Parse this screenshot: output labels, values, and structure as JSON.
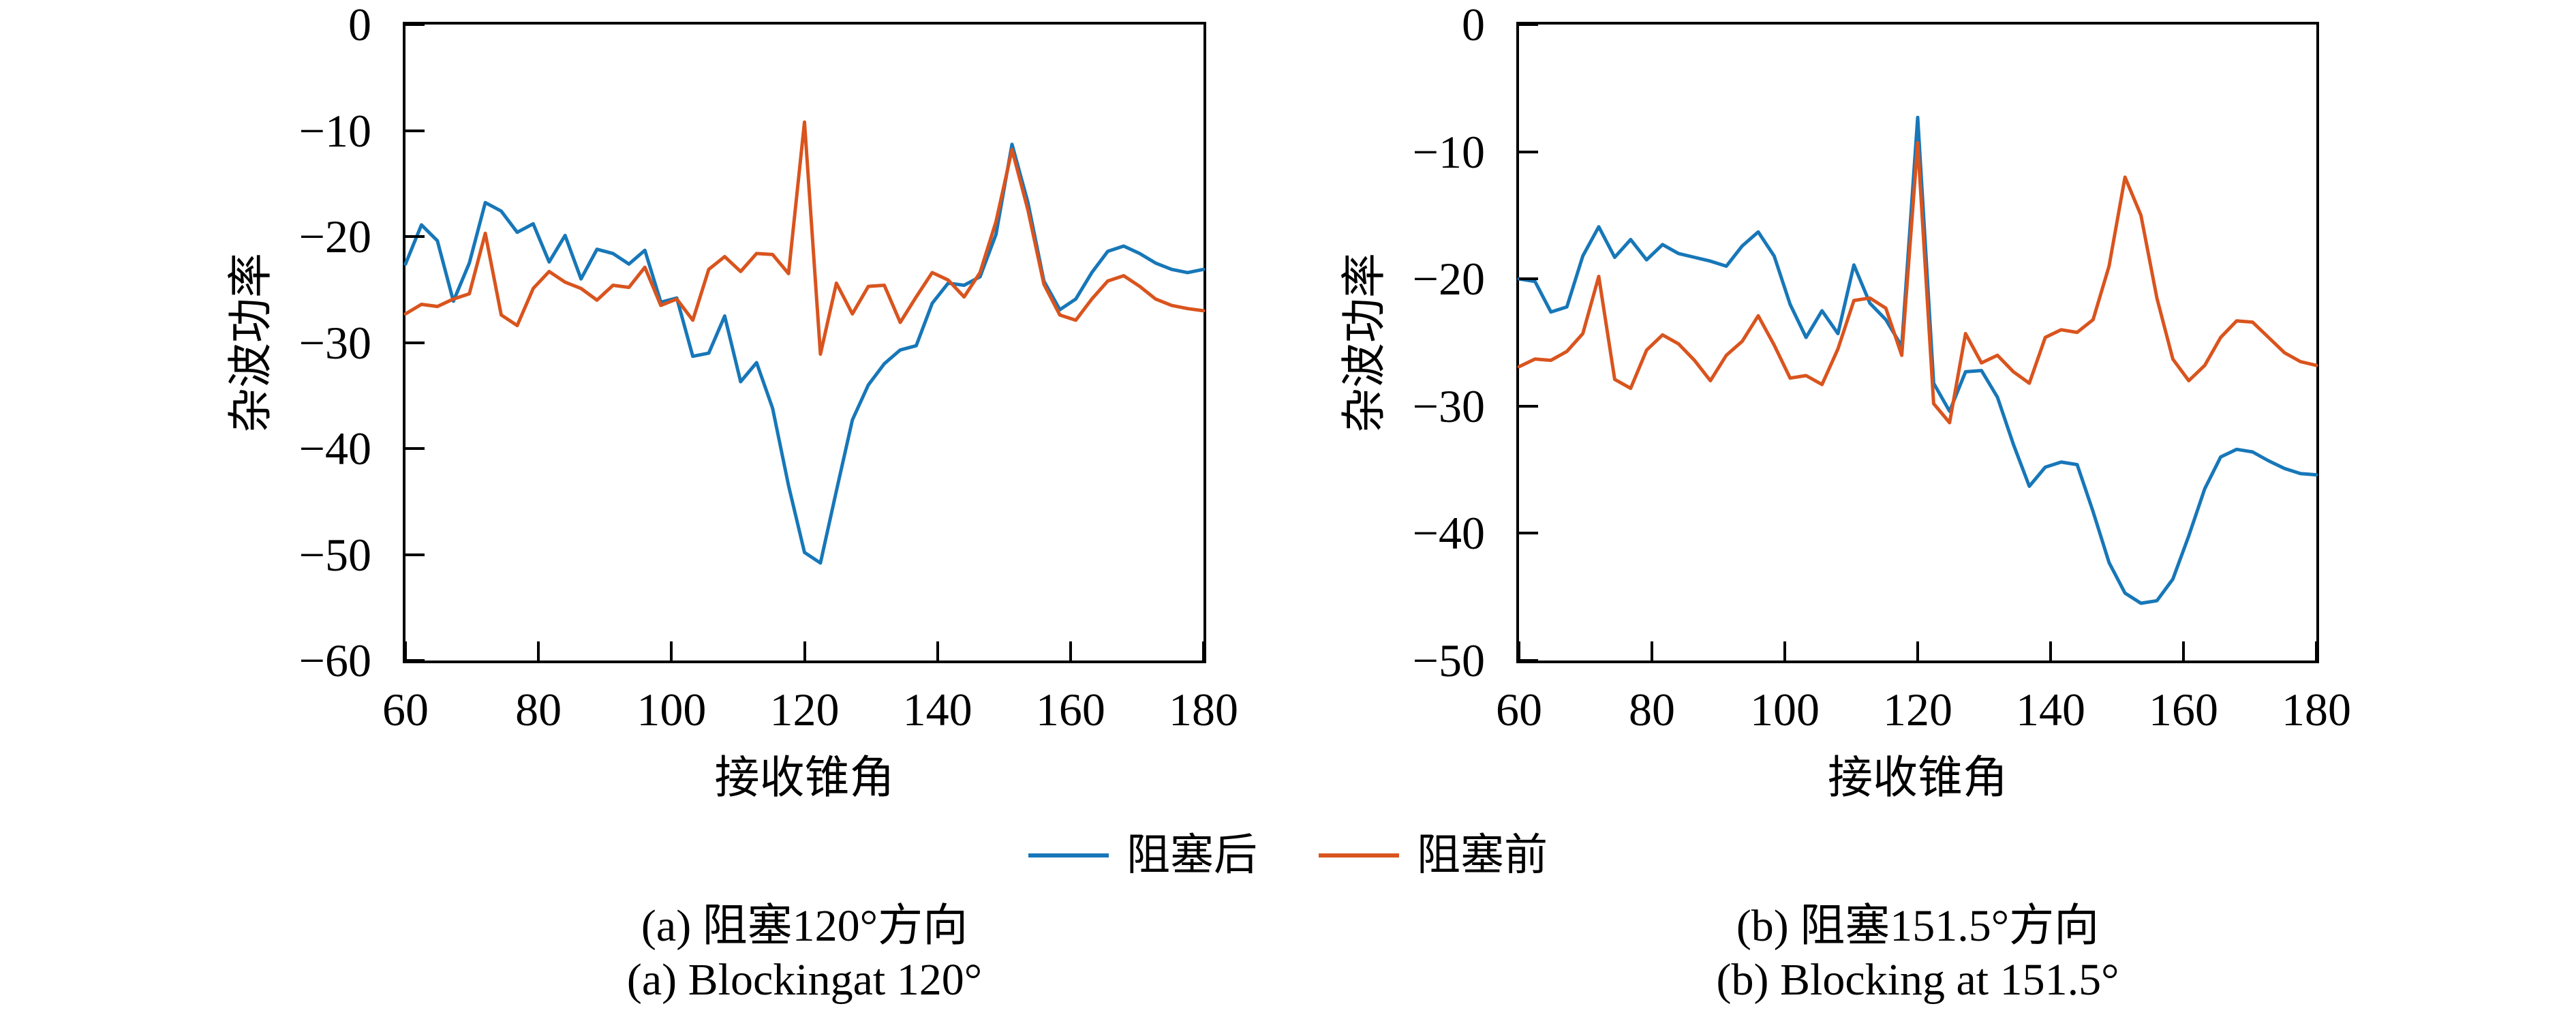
{
  "page": {
    "background": "#ffffff"
  },
  "legend": {
    "position": "bottom-center",
    "items": [
      {
        "label": "阻塞后",
        "color": "#1777b8"
      },
      {
        "label": "阻塞前",
        "color": "#d9541e"
      }
    ]
  },
  "chart_data": [
    {
      "type": "line",
      "title": "",
      "xlabel": "接收锥角",
      "ylabel": "杂波功率",
      "caption_line1": "(a) 阻塞120°方向",
      "caption_line2": "(a) Blockingat 120°",
      "xlim": [
        60,
        180
      ],
      "ylim": [
        -60,
        0
      ],
      "xticks": [
        60,
        80,
        100,
        120,
        140,
        160,
        180
      ],
      "yticks": [
        0,
        -10,
        -20,
        -30,
        -40,
        -50,
        -60
      ],
      "grid": false,
      "legend_position": "below-figure",
      "x": [
        60,
        62.4,
        64.8,
        67.2,
        69.6,
        72,
        74.4,
        76.8,
        79.2,
        81.6,
        84,
        86.4,
        88.8,
        91.2,
        93.6,
        96,
        98.4,
        100.8,
        103.2,
        105.6,
        108,
        110.4,
        112.8,
        115.2,
        117.6,
        120,
        122.4,
        124.8,
        127.2,
        129.6,
        132,
        134.4,
        136.8,
        139.2,
        141.6,
        144,
        146.4,
        148.8,
        151.2,
        153.6,
        156,
        158.4,
        160.8,
        163.2,
        165.6,
        168,
        170.4,
        172.8,
        175.2,
        177.6,
        180
      ],
      "series": [
        {
          "name": "阻塞后",
          "color": "#1777b8",
          "values": [
            -22.6,
            -18.9,
            -20.4,
            -26.1,
            -22.5,
            -16.8,
            -17.6,
            -19.6,
            -18.8,
            -22.4,
            -19.9,
            -24.0,
            -21.2,
            -21.6,
            -22.6,
            -21.3,
            -26.2,
            -25.8,
            -31.3,
            -31.0,
            -27.5,
            -33.7,
            -31.9,
            -36.2,
            -43.5,
            -49.8,
            -50.8,
            -44.0,
            -37.3,
            -34.0,
            -32.0,
            -30.7,
            -30.3,
            -26.3,
            -24.4,
            -24.6,
            -23.8,
            -19.8,
            -11.3,
            -16.8,
            -24.2,
            -26.9,
            -25.9,
            -23.4,
            -21.4,
            -20.9,
            -21.6,
            -22.5,
            -23.1,
            -23.4,
            -23.1
          ]
        },
        {
          "name": "阻塞前",
          "color": "#d9541e",
          "values": [
            -27.3,
            -26.4,
            -26.6,
            -25.9,
            -25.4,
            -19.7,
            -27.4,
            -28.4,
            -24.9,
            -23.3,
            -24.3,
            -24.9,
            -26.0,
            -24.6,
            -24.8,
            -22.9,
            -26.5,
            -25.9,
            -27.9,
            -23.1,
            -21.9,
            -23.3,
            -21.6,
            -21.7,
            -23.5,
            -9.2,
            -31.1,
            -24.4,
            -27.3,
            -24.7,
            -24.6,
            -28.1,
            -25.7,
            -23.4,
            -24.1,
            -25.7,
            -23.4,
            -18.6,
            -11.8,
            -17.5,
            -24.5,
            -27.4,
            -27.9,
            -25.9,
            -24.2,
            -23.7,
            -24.7,
            -25.9,
            -26.5,
            -26.8,
            -27.0
          ]
        }
      ]
    },
    {
      "type": "line",
      "title": "",
      "xlabel": "接收锥角",
      "ylabel": "杂波功率",
      "caption_line1": "(b) 阻塞151.5°方向",
      "caption_line2": "(b) Blocking at 151.5°",
      "xlim": [
        60,
        180
      ],
      "ylim": [
        -50,
        0
      ],
      "xticks": [
        60,
        80,
        100,
        120,
        140,
        160,
        180
      ],
      "yticks": [
        0,
        -10,
        -20,
        -30,
        -40,
        -50
      ],
      "grid": false,
      "legend_position": "below-figure",
      "x": [
        60,
        62.4,
        64.8,
        67.2,
        69.6,
        72,
        74.4,
        76.8,
        79.2,
        81.6,
        84,
        86.4,
        88.8,
        91.2,
        93.6,
        96,
        98.4,
        100.8,
        103.2,
        105.6,
        108,
        110.4,
        112.8,
        115.2,
        117.6,
        120,
        122.4,
        124.8,
        127.2,
        129.6,
        132,
        134.4,
        136.8,
        139.2,
        141.6,
        144,
        146.4,
        148.8,
        151.2,
        153.6,
        156,
        158.4,
        160.8,
        163.2,
        165.6,
        168,
        170.4,
        172.8,
        175.2,
        177.6,
        180
      ],
      "series": [
        {
          "name": "阻塞后",
          "color": "#1777b8",
          "values": [
            -20.0,
            -20.2,
            -22.6,
            -22.2,
            -18.2,
            -15.9,
            -18.3,
            -16.9,
            -18.5,
            -17.3,
            -18.0,
            -18.3,
            -18.6,
            -19.0,
            -17.4,
            -16.3,
            -18.2,
            -22.0,
            -24.6,
            -22.5,
            -24.3,
            -18.9,
            -21.9,
            -23.2,
            -25.3,
            -7.3,
            -28.2,
            -30.4,
            -27.3,
            -27.2,
            -29.3,
            -33.0,
            -36.3,
            -34.8,
            -34.4,
            -34.6,
            -38.3,
            -42.3,
            -44.7,
            -45.5,
            -45.3,
            -43.6,
            -40.2,
            -36.5,
            -34.0,
            -33.4,
            -33.6,
            -34.3,
            -34.9,
            -35.3,
            -35.4
          ]
        },
        {
          "name": "阻塞前",
          "color": "#d9541e",
          "values": [
            -26.9,
            -26.3,
            -26.4,
            -25.7,
            -24.3,
            -19.8,
            -27.9,
            -28.6,
            -25.6,
            -24.4,
            -25.1,
            -26.4,
            -28.0,
            -26.0,
            -24.9,
            -22.9,
            -25.2,
            -27.8,
            -27.6,
            -28.3,
            -25.5,
            -21.7,
            -21.5,
            -22.3,
            -26.0,
            -9.3,
            -29.8,
            -31.3,
            -24.3,
            -26.6,
            -26.0,
            -27.3,
            -28.2,
            -24.6,
            -24.0,
            -24.2,
            -23.2,
            -19.0,
            -12.0,
            -15.0,
            -21.5,
            -26.3,
            -28.0,
            -26.8,
            -24.6,
            -23.3,
            -23.4,
            -24.6,
            -25.8,
            -26.5,
            -26.8
          ]
        }
      ]
    }
  ]
}
